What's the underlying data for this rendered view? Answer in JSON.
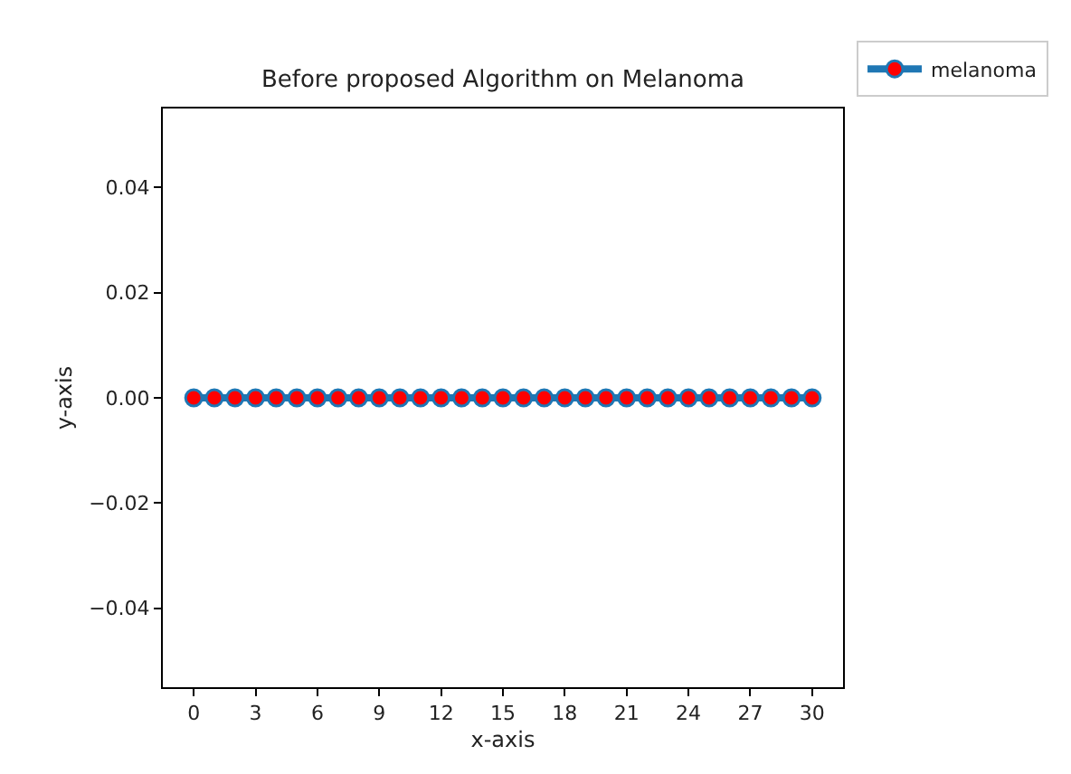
{
  "chart_data": {
    "type": "line",
    "title": "Before proposed Algorithm on Melanoma",
    "xlabel": "x-axis",
    "ylabel": "y-axis",
    "x": [
      0,
      1,
      2,
      3,
      4,
      5,
      6,
      7,
      8,
      9,
      10,
      11,
      12,
      13,
      14,
      15,
      16,
      17,
      18,
      19,
      20,
      21,
      22,
      23,
      24,
      25,
      26,
      27,
      28,
      29,
      30
    ],
    "series": [
      {
        "name": "melanoma",
        "color": "#1f77b4",
        "colors": [
          "#ff0000",
          "#ff0000",
          "#ff0000",
          "#ff0000",
          "#ff0000",
          "#ff0000",
          "#ff0000",
          "#ff0000",
          "#ff0000",
          "#ff0000",
          "#ff0000",
          "#ff0000",
          "#ff0000",
          "#ff0000",
          "#ff0000",
          "#ff0000",
          "#ff0000",
          "#ff0000",
          "#ff0000",
          "#ff0000",
          "#ff0000",
          "#ff0000",
          "#ff0000",
          "#ff0000",
          "#ff0000",
          "#ff0000",
          "#ff0000",
          "#ff0000",
          "#ff0000",
          "#ff0000",
          "#ff0000"
        ],
        "values": [
          0,
          0,
          0,
          0,
          0,
          0,
          0,
          0,
          0,
          0,
          0,
          0,
          0,
          0,
          0,
          0,
          0,
          0,
          0,
          0,
          0,
          0,
          0,
          0,
          0,
          0,
          0,
          0,
          0,
          0,
          0
        ]
      }
    ],
    "xlim": [
      -1.5,
      31.5
    ],
    "xticks": [
      0,
      3,
      6,
      9,
      12,
      15,
      18,
      21,
      24,
      27,
      30
    ],
    "ylim": [
      -0.055,
      0.055
    ],
    "yticks": [
      {
        "value": -0.04,
        "label": "−0.04"
      },
      {
        "value": -0.02,
        "label": "−0.02"
      },
      {
        "value": 0,
        "label": "0.00"
      },
      {
        "value": 0.02,
        "label": "0.02"
      },
      {
        "value": 0.04,
        "label": "0.04"
      }
    ],
    "marker": "circle",
    "line_style": "solid",
    "legend": "top right",
    "grid": false
  }
}
